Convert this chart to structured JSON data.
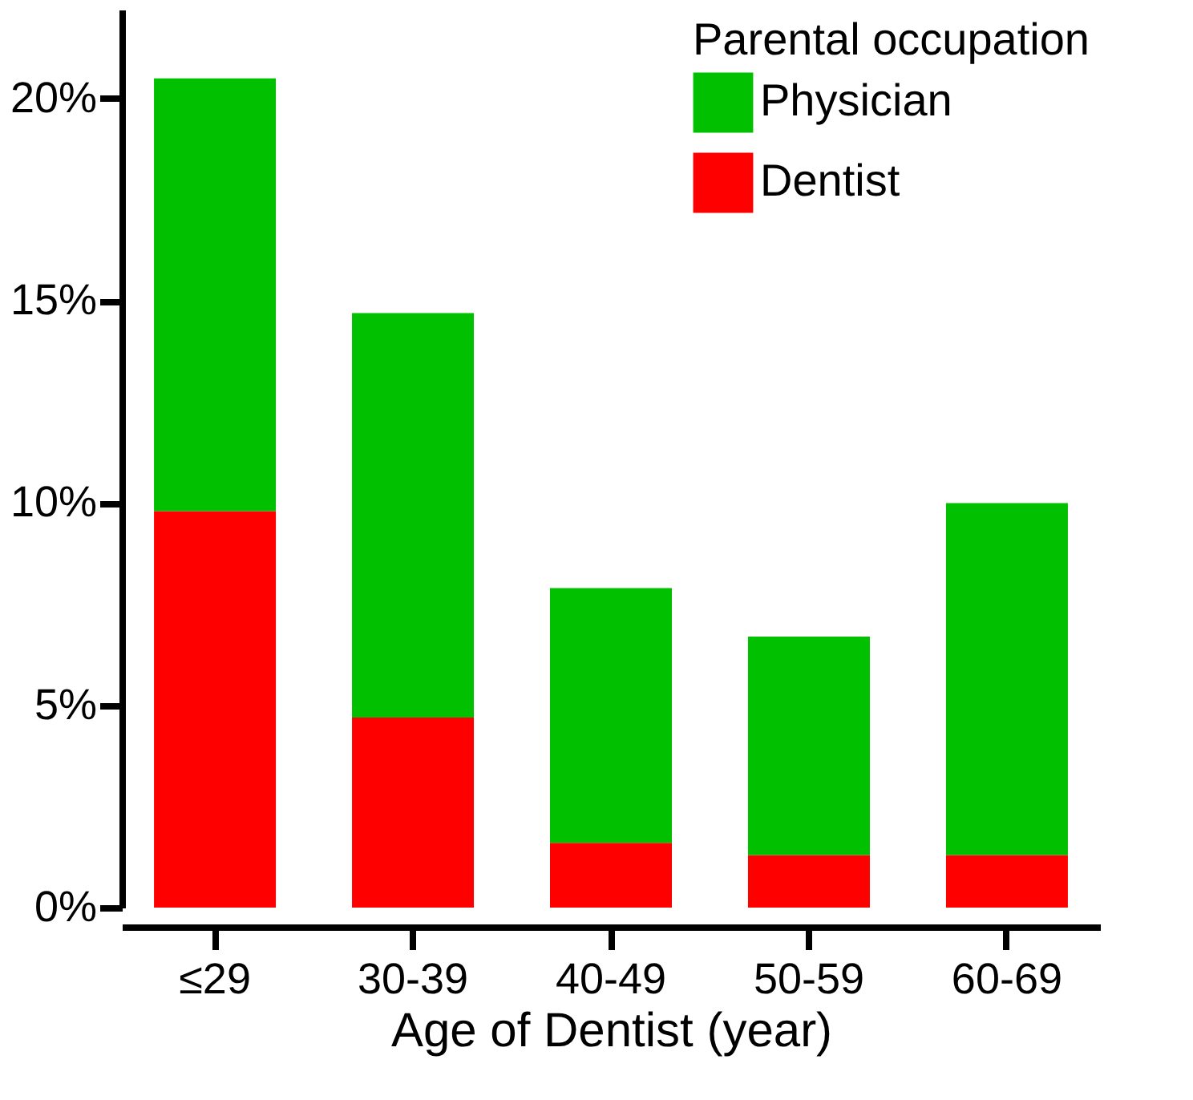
{
  "chart_data": {
    "type": "bar",
    "stacked": true,
    "xlabel": "Age of Dentist (year)",
    "legend_title": "Parental occupation",
    "legend": "top right",
    "grid": false,
    "categories": [
      "≤29",
      "30-39",
      "40-49",
      "50-59",
      "60-69"
    ],
    "series": [
      {
        "name": "Dentist",
        "color": "#ff0000",
        "values": [
          9.8,
          4.7,
          1.6,
          1.3,
          1.3
        ]
      },
      {
        "name": "Physician",
        "color": "#00c000",
        "values": [
          10.7,
          10.0,
          6.3,
          5.4,
          8.7
        ]
      }
    ],
    "ylim": [
      0,
      22.2
    ],
    "yticks": [
      {
        "value": 0,
        "label": "0%"
      },
      {
        "value": 5,
        "label": "5%"
      },
      {
        "value": 10,
        "label": "10%"
      },
      {
        "value": 15,
        "label": "15%"
      },
      {
        "value": 20,
        "label": "20%"
      }
    ]
  }
}
